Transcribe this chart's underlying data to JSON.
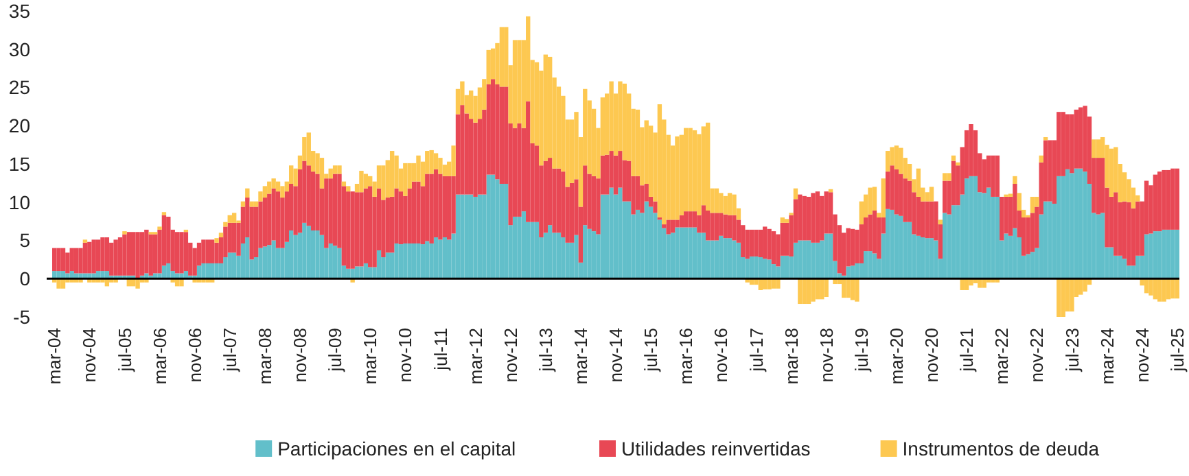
{
  "chart_data": {
    "type": "bar",
    "stacked": true,
    "legend": "bottom",
    "ylim": [
      -5,
      35
    ],
    "yticks": [
      -5,
      0,
      5,
      10,
      15,
      20,
      25,
      30,
      35
    ],
    "categories": [
      "mar-04",
      null,
      null,
      null,
      null,
      null,
      null,
      null,
      "nov-04",
      null,
      null,
      null,
      null,
      null,
      null,
      null,
      "jul-05",
      null,
      null,
      null,
      null,
      null,
      null,
      null,
      "mar-06",
      null,
      null,
      null,
      null,
      null,
      null,
      null,
      "nov-06",
      null,
      null,
      null,
      null,
      null,
      null,
      null,
      "jul-07",
      null,
      null,
      null,
      null,
      null,
      null,
      null,
      "mar-08",
      null,
      null,
      null,
      null,
      null,
      null,
      null,
      "nov-08",
      null,
      null,
      null,
      null,
      null,
      null,
      null,
      "jul-09",
      null,
      null,
      null,
      null,
      null,
      null,
      null,
      "mar-10",
      null,
      null,
      null,
      null,
      null,
      null,
      null,
      "nov-10",
      null,
      null,
      null,
      null,
      null,
      null,
      null,
      "jul-11",
      null,
      null,
      null,
      null,
      null,
      null,
      null,
      "mar-12",
      null,
      null,
      null,
      null,
      null,
      null,
      null,
      "nov-12",
      null,
      null,
      null,
      null,
      null,
      null,
      null,
      "jul-13",
      null,
      null,
      null,
      null,
      null,
      null,
      null,
      "mar-14",
      null,
      null,
      null,
      null,
      null,
      null,
      null,
      "nov-14",
      null,
      null,
      null,
      null,
      null,
      null,
      null,
      "jul-15",
      null,
      null,
      null,
      null,
      null,
      null,
      null,
      "mar-16",
      null,
      null,
      null,
      null,
      null,
      null,
      null,
      "nov-16",
      null,
      null,
      null,
      null,
      null,
      null,
      null,
      "jul-17",
      null,
      null,
      null,
      null,
      null,
      null,
      null,
      "mar-18",
      null,
      null,
      null,
      null,
      null,
      null,
      null,
      "nov-18",
      null,
      null,
      null,
      null,
      null,
      null,
      null,
      "jul-19",
      null,
      null,
      null,
      null,
      null,
      null,
      null,
      "mar-20",
      null,
      null,
      null,
      null,
      null,
      null,
      null,
      "nov-20",
      null,
      null,
      null,
      null,
      null,
      null,
      null,
      "jul-21",
      null,
      null,
      null,
      null,
      null,
      null,
      null,
      "mar-22",
      null,
      null,
      null,
      null,
      null,
      null,
      null,
      "nov-22",
      null,
      null,
      null,
      null,
      null,
      null,
      null,
      "jul-23",
      null,
      null,
      null,
      null,
      null,
      null,
      null,
      "mar-24",
      null,
      null,
      null,
      null,
      null,
      null,
      null,
      "nov-24",
      null,
      null,
      null,
      null,
      null,
      null,
      null,
      "jul-25"
    ],
    "series": [
      {
        "name": "Participaciones en el capital",
        "color": "#62bfca",
        "values": [
          1.0,
          1.0,
          1.0,
          0.7,
          1.0,
          0.7,
          0.7,
          0.7,
          0.7,
          0.7,
          1.0,
          1.0,
          1.0,
          0.4,
          0.4,
          0.4,
          0.4,
          0.4,
          0.4,
          0.1,
          0.4,
          0.7,
          0.4,
          0.7,
          0.7,
          1.7,
          2.0,
          1.0,
          0.7,
          0.7,
          1.0,
          0.4,
          0.4,
          1.7,
          2.0,
          2.0,
          2.0,
          2.0,
          2.0,
          2.8,
          3.4,
          3.4,
          3.0,
          4.6,
          5.4,
          2.5,
          2.8,
          4.0,
          4.2,
          4.4,
          5.0,
          4.0,
          4.0,
          4.8,
          6.3,
          5.7,
          6.0,
          7.3,
          6.9,
          6.3,
          6.3,
          5.7,
          4.0,
          4.6,
          4.3,
          4.0,
          1.7,
          1.3,
          1.3,
          1.6,
          1.6,
          2.0,
          1.5,
          1.5,
          3.7,
          2.8,
          3.4,
          3.4,
          4.6,
          4.5,
          4.6,
          4.6,
          4.6,
          4.6,
          4.5,
          4.9,
          4.6,
          5.4,
          5.1,
          5.4,
          5.1,
          5.9,
          11.0,
          11.0,
          11.0,
          11.0,
          10.7,
          11.0,
          11.0,
          13.6,
          13.6,
          13.0,
          12.4,
          12.4,
          7.0,
          8.1,
          8.1,
          8.8,
          7.4,
          7.4,
          7.4,
          5.4,
          6.0,
          7.0,
          6.0,
          6.0,
          5.4,
          4.7,
          4.7,
          5.7,
          2.1,
          7.0,
          6.5,
          6.2,
          5.8,
          11.0,
          11.0,
          11.9,
          11.0,
          11.9,
          10.1,
          10.1,
          8.4,
          9.0,
          8.6,
          10.1,
          9.4,
          8.6,
          7.7,
          6.6,
          5.8,
          6.0,
          6.7,
          6.7,
          6.7,
          6.7,
          6.7,
          6.0,
          6.0,
          5.0,
          5.0,
          5.0,
          5.6,
          5.3,
          5.3,
          5.0,
          4.7,
          2.8,
          2.6,
          2.9,
          2.9,
          2.8,
          2.6,
          2.5,
          1.9,
          1.6,
          3.0,
          3.0,
          2.9,
          4.7,
          5.0,
          5.0,
          5.0,
          4.7,
          4.7,
          5.0,
          5.9,
          5.9,
          2.3,
          0.7,
          0.4,
          1.6,
          1.7,
          2.0,
          2.0,
          3.6,
          3.6,
          3.3,
          2.6,
          5.9,
          9.1,
          9.0,
          8.4,
          8.2,
          7.4,
          7.4,
          5.8,
          5.6,
          5.4,
          5.3,
          5.3,
          5.0,
          2.6,
          8.6,
          8.4,
          9.6,
          9.6,
          11.0,
          13.1,
          13.4,
          13.4,
          11.3,
          11.2,
          11.9,
          10.7,
          10.7,
          5.0,
          5.9,
          5.6,
          6.6,
          5.4,
          3.0,
          3.2,
          3.5,
          4.0,
          8.4,
          10.1,
          10.1,
          9.8,
          13.4,
          13.4,
          14.3,
          13.8,
          14.4,
          14.4,
          14.0,
          12.4,
          8.6,
          8.4,
          8.6,
          4.1,
          4.1,
          3.0,
          3.0,
          2.6,
          1.7,
          1.7,
          3.0,
          3.0,
          5.8,
          5.9,
          6.2,
          6.2,
          6.4,
          6.4,
          6.4,
          6.4
        ]
      },
      {
        "name": "Utilidades reinvertidas",
        "color": "#e84855",
        "values": [
          3.0,
          3.0,
          3.0,
          2.7,
          3.0,
          3.3,
          3.3,
          4.0,
          4.1,
          4.4,
          4.1,
          4.4,
          4.4,
          4.3,
          4.7,
          5.0,
          5.4,
          5.7,
          5.7,
          6.0,
          5.7,
          5.7,
          5.4,
          5.1,
          5.7,
          6.6,
          6.1,
          5.4,
          5.4,
          5.4,
          5.1,
          4.3,
          3.6,
          3.0,
          3.1,
          3.1,
          3.1,
          2.7,
          3.4,
          4.0,
          3.9,
          3.9,
          4.3,
          4.8,
          5.2,
          6.9,
          6.6,
          6.1,
          6.4,
          6.7,
          6.8,
          7.4,
          6.6,
          6.6,
          6.1,
          6.4,
          8.3,
          8.1,
          7.9,
          7.7,
          7.4,
          6.1,
          9.1,
          8.5,
          9.4,
          9.7,
          10.4,
          10.1,
          10.1,
          9.7,
          9.7,
          9.8,
          10.6,
          9.2,
          8.1,
          7.5,
          7.2,
          7.3,
          7.2,
          6.9,
          6.2,
          7.2,
          8.1,
          8.1,
          7.6,
          8.8,
          9.1,
          8.9,
          8.6,
          8.0,
          8.3,
          7.5,
          10.5,
          11.7,
          10.6,
          9.9,
          9.7,
          9.9,
          11.1,
          11.8,
          12.5,
          12.4,
          12.7,
          12.7,
          13.3,
          11.6,
          12.2,
          10.9,
          15.8,
          10.3,
          10.0,
          9.4,
          9.4,
          8.8,
          8.4,
          8.4,
          8.6,
          7.3,
          7.8,
          7.3,
          7.3,
          7.8,
          7.2,
          7.2,
          7.3,
          5.1,
          5.2,
          4.8,
          5.1,
          4.8,
          5.4,
          5.3,
          5.0,
          4.4,
          3.6,
          2.3,
          1.3,
          1.5,
          0.3,
          0.5,
          1.9,
          1.7,
          1.0,
          1.6,
          2.1,
          2.1,
          2.1,
          2.3,
          3.6,
          3.9,
          3.6,
          3.6,
          3.0,
          3.1,
          3.0,
          3.3,
          3.0,
          4.2,
          3.8,
          3.5,
          3.5,
          3.6,
          4.2,
          4.0,
          4.3,
          4.2,
          4.3,
          4.3,
          5.4,
          5.7,
          6.0,
          5.8,
          5.7,
          6.5,
          6.7,
          5.8,
          5.5,
          5.4,
          6.1,
          6.3,
          5.6,
          5.0,
          4.8,
          4.4,
          5.1,
          4.4,
          4.8,
          5.6,
          5.4,
          2.1,
          4.9,
          5.8,
          5.9,
          5.5,
          5.7,
          5.4,
          5.5,
          5.1,
          4.7,
          4.8,
          4.8,
          5.1,
          4.5,
          4.2,
          4.4,
          5.8,
          5.2,
          6.2,
          6.3,
          6.8,
          6.0,
          5.1,
          4.4,
          4.2,
          5.4,
          5.4,
          5.7,
          4.8,
          5.1,
          5.8,
          3.5,
          5.0,
          4.8,
          5.1,
          5.4,
          6.8,
          8.0,
          8.0,
          8.3,
          8.4,
          8.4,
          7.2,
          7.7,
          7.7,
          8.0,
          8.6,
          8.8,
          7.2,
          7.4,
          7.2,
          7.8,
          6.6,
          8.3,
          7.0,
          7.5,
          8.3,
          7.5,
          7.1,
          7.1,
          7.0,
          6.3,
          7.4,
          7.8,
          7.8,
          7.8,
          8.0,
          8.0
        ]
      },
      {
        "name": "Instrumentos de deuda",
        "color": "#fdc851",
        "values": [
          -0.5,
          -1.3,
          -1.3,
          -0.5,
          -0.5,
          -0.5,
          -0.5,
          0.4,
          -0.5,
          -0.5,
          -0.5,
          -0.5,
          -1.0,
          -0.5,
          -0.5,
          0,
          0.4,
          -1.0,
          -1.0,
          -1.3,
          -0.5,
          -0.5,
          0.3,
          0.3,
          0.4,
          0.4,
          0,
          -0.5,
          -1.0,
          -1.0,
          0.3,
          0,
          -0.5,
          -0.5,
          -0.5,
          -0.5,
          -0.5,
          0.6,
          0.6,
          0.6,
          1.0,
          1.3,
          0.3,
          0.7,
          1.2,
          0.7,
          0.7,
          1.3,
          1.5,
          1.6,
          1.3,
          1.3,
          1.5,
          1.3,
          2.4,
          2.3,
          1.8,
          3.1,
          4.3,
          2.7,
          2.7,
          4.0,
          0.6,
          1.3,
          1.1,
          1.1,
          0.6,
          0.7,
          -0.5,
          1.1,
          2.8,
          1.9,
          1.3,
          2.0,
          3.0,
          4.5,
          4.9,
          6.0,
          4.3,
          3.0,
          4.3,
          3.3,
          2.4,
          3.4,
          3.2,
          3.0,
          3.1,
          2.1,
          2.1,
          1.5,
          1.9,
          4.0,
          3.3,
          3.1,
          2.4,
          3.7,
          3.5,
          4.1,
          4.0,
          4.5,
          4.0,
          5.4,
          7.8,
          7.8,
          7.6,
          11.5,
          10.9,
          11.5,
          11.1,
          10.9,
          10.9,
          12.4,
          13.9,
          13.2,
          11.9,
          10.7,
          9.9,
          8.8,
          8.3,
          8.8,
          9.1,
          10.0,
          9.6,
          8.8,
          6.6,
          7.6,
          8.0,
          9.1,
          8.1,
          9.1,
          10.0,
          8.8,
          8.8,
          8.7,
          7.6,
          8.3,
          9.3,
          9.0,
          14.8,
          13.7,
          11.1,
          9.7,
          10.9,
          10.5,
          10.9,
          10.9,
          10.6,
          10.6,
          10.3,
          11.5,
          3.2,
          3.2,
          2.6,
          2.4,
          2.9,
          2.7,
          1.5,
          0,
          -0.5,
          -0.8,
          -0.8,
          -1.5,
          -1.4,
          -1.4,
          -1.3,
          -1.3,
          0.7,
          0.5,
          0.3,
          1.4,
          -3.3,
          -3.3,
          -3.3,
          -3.0,
          -2.7,
          -2.7,
          -2.4,
          0.4,
          -0.7,
          -0.7,
          -2.5,
          -2.5,
          -2.8,
          -3.0,
          3.0,
          3.0,
          3.5,
          3.1,
          0.6,
          5.1,
          2.7,
          2.4,
          3.1,
          3.4,
          2.7,
          2.2,
          1.7,
          3.7,
          1.8,
          1.2,
          1.9,
          0,
          0.6,
          1.0,
          1.0,
          0.7,
          0.4,
          -1.5,
          -1.5,
          -0.9,
          -0.6,
          -1.2,
          -1.2,
          -0.5,
          -0.5,
          -0.5,
          0,
          0.3,
          0.4,
          1.0,
          2.3,
          1.0,
          0.3,
          2.1,
          1.3,
          0.9,
          0.4,
          0,
          0,
          -5.0,
          -5.0,
          -4.3,
          -4.3,
          -2.4,
          -2.1,
          -1.7,
          -0.8,
          2.4,
          2.4,
          2.7,
          5.6,
          6.3,
          5.9,
          5.0,
          3.8,
          3.0,
          2.7,
          0.8,
          -0.9,
          -1.9,
          -2.2,
          -2.7,
          -3.0,
          -3.0,
          -2.7,
          -2.6,
          -2.6
        ]
      }
    ]
  }
}
